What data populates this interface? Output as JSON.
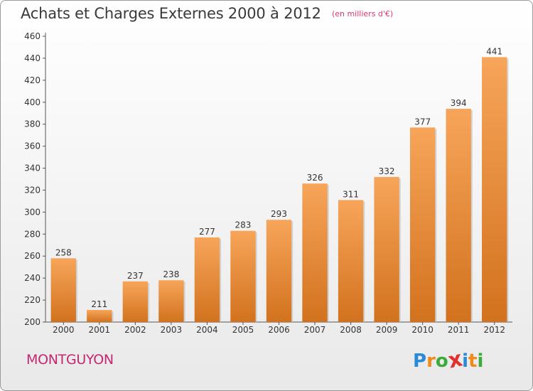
{
  "title": "Achats et Charges Externes 2000 à 2012",
  "subtitle": "(en milliers d'€)",
  "commune": "MONTGUYON",
  "logo": {
    "letters": [
      "P",
      "r",
      "o",
      "x",
      "i",
      "t",
      "i"
    ],
    "colors": [
      "#2a8ad8",
      "#f08a1c",
      "#3caa3c",
      "#e03030",
      "#2a8ad8",
      "#f08a1c",
      "#3caa3c"
    ]
  },
  "chart_data": {
    "type": "bar",
    "categories": [
      "2000",
      "2001",
      "2002",
      "2003",
      "2004",
      "2005",
      "2006",
      "2007",
      "2008",
      "2009",
      "2010",
      "2011",
      "2012"
    ],
    "values": [
      258,
      211,
      237,
      238,
      277,
      283,
      293,
      326,
      311,
      332,
      377,
      394,
      441
    ],
    "title": "Achats et Charges Externes 2000 à 2012",
    "ylim": [
      200,
      460
    ],
    "yticks": [
      200,
      220,
      240,
      260,
      280,
      300,
      320,
      340,
      360,
      380,
      400,
      420,
      440,
      460
    ],
    "grid": false,
    "legend": "none",
    "bar_color": "#f08a30"
  }
}
